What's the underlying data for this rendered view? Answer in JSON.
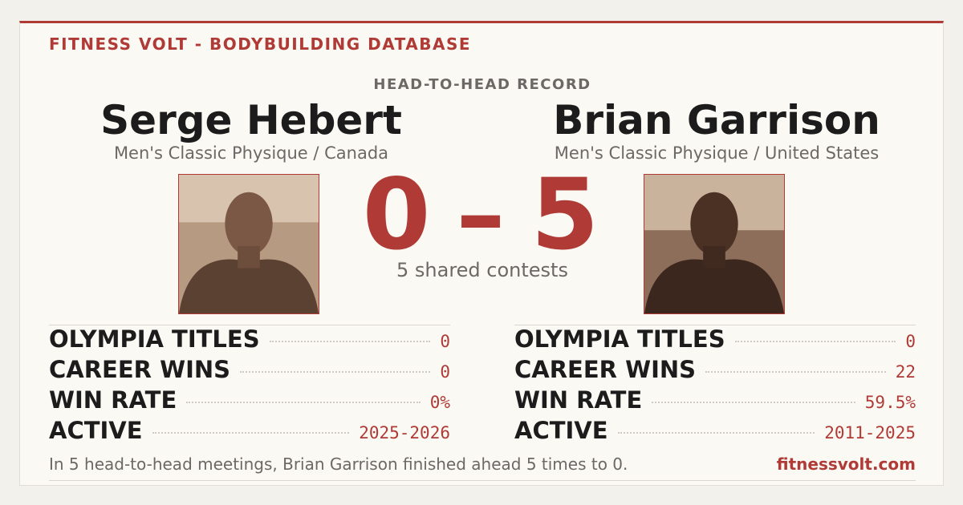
{
  "header": {
    "brand": "FITNESS VOLT - BODYBUILDING DATABASE",
    "subtitle": "HEAD-TO-HEAD RECORD"
  },
  "athletes": [
    {
      "name": "Serge Hebert",
      "division": "Men's Classic Physique / Canada",
      "stats": [
        {
          "label": "OLYMPIA TITLES",
          "value": "0"
        },
        {
          "label": "CAREER WINS",
          "value": "0"
        },
        {
          "label": "WIN RATE",
          "value": "0%"
        },
        {
          "label": "ACTIVE",
          "value": "2025-2026"
        }
      ]
    },
    {
      "name": "Brian Garrison",
      "division": "Men's Classic Physique / United States",
      "stats": [
        {
          "label": "OLYMPIA TITLES",
          "value": "0"
        },
        {
          "label": "CAREER WINS",
          "value": "22"
        },
        {
          "label": "WIN RATE",
          "value": "59.5%"
        },
        {
          "label": "ACTIVE",
          "value": "2011-2025"
        }
      ]
    }
  ],
  "score": {
    "left": "0",
    "separator": "–",
    "right": "5",
    "caption": "5 shared contests"
  },
  "footer": {
    "summary": "In 5 head-to-head meetings, Brian Garrison finished ahead 5 times to 0.",
    "site": "fitnessvolt.com"
  }
}
